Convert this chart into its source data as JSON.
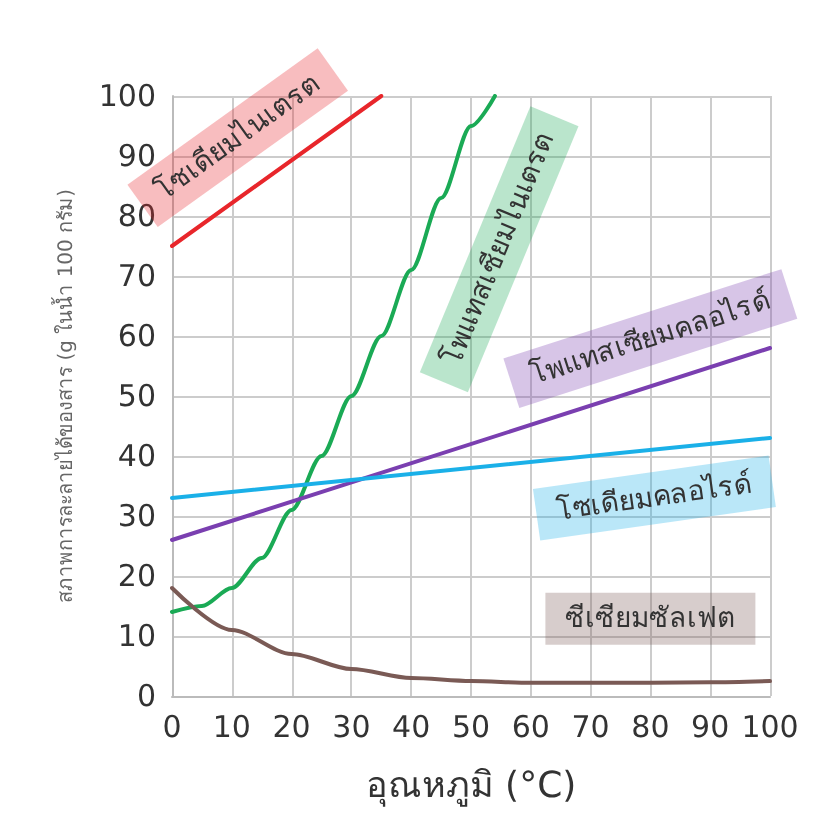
{
  "chart_data": {
    "type": "line",
    "xlabel": "อุณหภูมิ (°C)",
    "ylabel": "สภาพการละลายได้ของสาร (g ในน้ำ 100 กรัม)",
    "xlim": [
      0,
      100
    ],
    "xticks": [
      0,
      10,
      20,
      30,
      40,
      50,
      60,
      70,
      80,
      90,
      100
    ],
    "ylim": [
      0,
      100
    ],
    "yticks": [
      0,
      10,
      20,
      30,
      40,
      50,
      60,
      70,
      80,
      90,
      100
    ],
    "grid": true,
    "legend": false,
    "marker": "none",
    "line_style": "solid",
    "series": [
      {
        "name": "โซเดียมไนเตรต",
        "color": "#e8262b",
        "x": [
          0,
          35
        ],
        "values": [
          75,
          100
        ]
      },
      {
        "name": "โพแทสเซียมไนเตรต",
        "color": "#1aaa55",
        "x": [
          0,
          5,
          10,
          15,
          20,
          25,
          30,
          35,
          40,
          45,
          50,
          54
        ],
        "values": [
          14,
          15,
          18,
          23,
          31,
          40,
          50,
          60,
          71,
          83,
          95,
          100
        ]
      },
      {
        "name": "โพแทสเซียมคลอไรด์",
        "color": "#7a3fb0",
        "x": [
          0,
          100
        ],
        "values": [
          26,
          58
        ]
      },
      {
        "name": "โซเดียมคลอไรด์",
        "color": "#1ab0e8",
        "x": [
          0,
          100
        ],
        "values": [
          33,
          43
        ]
      },
      {
        "name": "ซีเซียมซัลเฟต",
        "color": "#7a5a55",
        "x": [
          0,
          10,
          20,
          30,
          40,
          50,
          60,
          70,
          80,
          90,
          100
        ],
        "values": [
          18,
          11,
          7,
          4.5,
          3,
          2.5,
          2.2,
          2.2,
          2.2,
          2.3,
          2.5
        ]
      }
    ]
  }
}
